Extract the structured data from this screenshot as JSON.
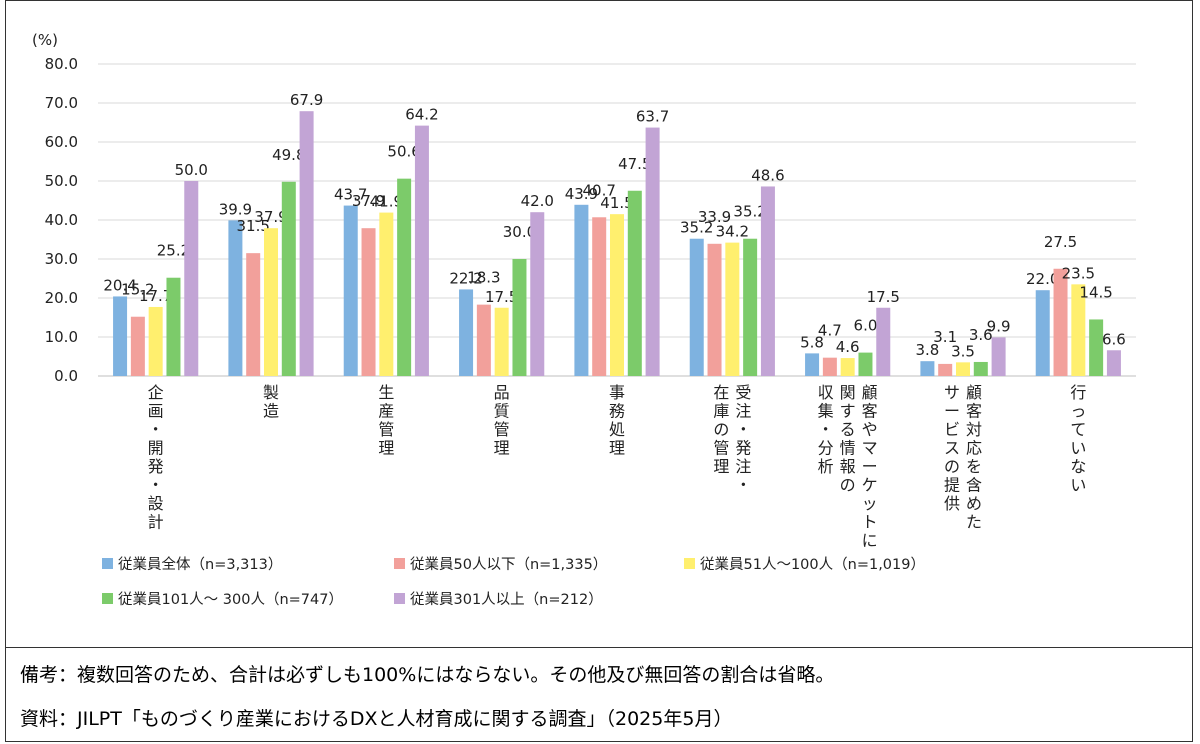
{
  "chart_data": {
    "type": "bar",
    "unit_label": "(%)",
    "ylim": [
      0,
      80
    ],
    "yticks": [
      "0.0",
      "10.0",
      "20.0",
      "30.0",
      "40.0",
      "50.0",
      "60.0",
      "70.0",
      "80.0"
    ],
    "grid": true,
    "legend_position": "bottom-left",
    "categories": [
      [
        "企画・開発・設計"
      ],
      [
        "製造"
      ],
      [
        "生産管理"
      ],
      [
        "品質管理"
      ],
      [
        "事務処理"
      ],
      [
        "受注・発注・",
        "在庫の管理"
      ],
      [
        "顧客やマーケットに",
        "関する情報の",
        "収集・分析"
      ],
      [
        "顧客対応を含めた",
        "サービスの提供"
      ],
      [
        "行っていない"
      ]
    ],
    "series": [
      {
        "name": "従業員全体（n=3,313）",
        "color": "#7EB2E0",
        "values": [
          20.4,
          39.9,
          43.7,
          22.2,
          43.9,
          35.2,
          5.8,
          3.8,
          22.0
        ]
      },
      {
        "name": "従業員50人以下（n=1,335）",
        "color": "#F2A09B",
        "values": [
          15.2,
          31.5,
          37.9,
          18.3,
          40.7,
          33.9,
          4.7,
          3.1,
          27.5
        ]
      },
      {
        "name": "従業員51人～100人（n=1,019）",
        "color": "#FFEF6E",
        "values": [
          17.7,
          37.9,
          41.9,
          17.5,
          41.5,
          34.2,
          4.6,
          3.5,
          23.5
        ]
      },
      {
        "name": "従業員101人～ 300人（n=747）",
        "color": "#7CCB6A",
        "values": [
          25.2,
          49.8,
          50.6,
          30.0,
          47.5,
          35.2,
          6.0,
          3.6,
          14.5
        ]
      },
      {
        "name": "従業員301人以上（n=212）",
        "color": "#C2A4D5",
        "values": [
          50.0,
          67.9,
          64.2,
          42.0,
          63.7,
          48.6,
          17.5,
          9.9,
          6.6
        ]
      }
    ]
  },
  "notes": {
    "remark": "備考：複数回答のため、合計は必ずしも100%にはならない。その他及び無回答の割合は省略。",
    "source": "資料：JILPT「ものづくり産業におけるDXと人材育成に関する調査」（2025年5月）"
  }
}
